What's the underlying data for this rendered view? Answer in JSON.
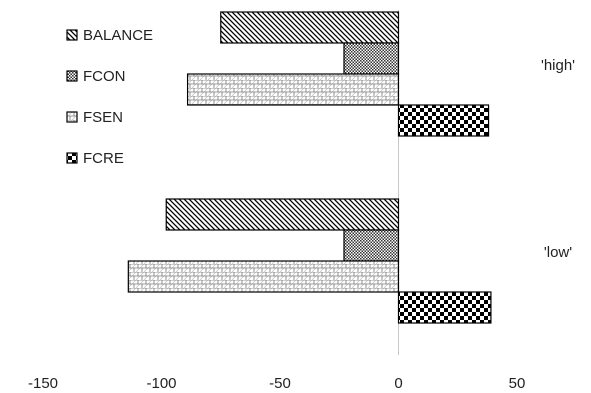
{
  "chart_data": {
    "type": "bar",
    "orientation": "horizontal",
    "categories": [
      "'high'",
      "'low'"
    ],
    "series": [
      {
        "name": "BALANCE",
        "pattern": "diagonal-stripes",
        "values": [
          -75,
          -98
        ]
      },
      {
        "name": "FCON",
        "pattern": "fine-checker",
        "values": [
          -23,
          -23
        ]
      },
      {
        "name": "FSEN",
        "pattern": "brick",
        "values": [
          -89,
          -114
        ]
      },
      {
        "name": "FCRE",
        "pattern": "large-checker",
        "values": [
          38,
          39
        ]
      }
    ],
    "xlim": [
      -150,
      50
    ],
    "x_ticks": [
      "-150",
      "-100",
      "-50",
      "0",
      "50"
    ],
    "x_tick_values": [
      -150,
      -100,
      -50,
      0,
      50
    ],
    "grid": false,
    "legend_position": "top-left",
    "title": "",
    "xlabel": "",
    "ylabel": ""
  }
}
